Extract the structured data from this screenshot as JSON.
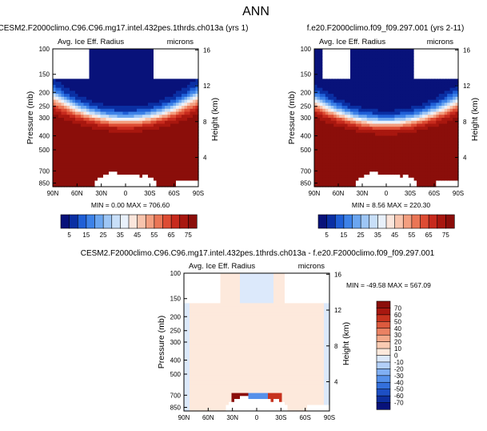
{
  "figure_title": "ANN",
  "colors": {
    "above_scale": "#8b0e0a",
    "missing": "#ffffff",
    "frame": "#000000"
  },
  "chart_data": [
    {
      "type": "heatmap",
      "id": "model",
      "title": "CESM2.F2000climo.C96.C96.mg17.intel.432pes.1thrds.ch013a (yrs 1)",
      "field_label": "Avg. Ice Eff. Radius",
      "units": "microns",
      "ylabel": "Pressure (mb)",
      "ylabel_right": "Height (km)",
      "x_ticks": [
        "90N",
        "60N",
        "30N",
        "0",
        "30S",
        "60S",
        "90S"
      ],
      "y_ticks": [
        100,
        150,
        200,
        250,
        300,
        400,
        500,
        700,
        850
      ],
      "y_ticks_right": [
        16,
        12,
        8,
        4
      ],
      "min_label": "MIN =   0.00",
      "max_label": "MAX = 706.60",
      "levels": [
        5,
        10,
        15,
        20,
        25,
        30,
        35,
        40,
        45,
        50,
        55,
        60,
        65,
        70,
        75
      ],
      "colorbar_labels": [
        "5",
        "15",
        "25",
        "35",
        "45",
        "55",
        "65",
        "75"
      ],
      "colors": [
        "#08127a",
        "#0a2fa3",
        "#1f5fd6",
        "#3d82e8",
        "#6ba6f0",
        "#9ec6f5",
        "#c8dff8",
        "#e9f1fb",
        "#fbe6dc",
        "#f8c4ad",
        "#f39f80",
        "#ea7656",
        "#dd4c33",
        "#c72a1d",
        "#a8170f",
        "#8b0e0a"
      ]
    },
    {
      "type": "heatmap",
      "id": "obs",
      "title": "f.e20.F2000climo.f09_f09.297.001 (yrs 2-11)",
      "field_label": "Avg. Ice Eff. Radius",
      "units": "microns",
      "ylabel": "Pressure (mb)",
      "ylabel_right": "Height (km)",
      "x_ticks": [
        "90N",
        "60N",
        "30N",
        "0",
        "30S",
        "60S",
        "90S"
      ],
      "y_ticks": [
        100,
        150,
        200,
        250,
        300,
        400,
        500,
        700,
        850
      ],
      "y_ticks_right": [
        16,
        12,
        8,
        4
      ],
      "min_label": "MIN =   8.56",
      "max_label": "MAX = 220.30",
      "levels": [
        5,
        10,
        15,
        20,
        25,
        30,
        35,
        40,
        45,
        50,
        55,
        60,
        65,
        70,
        75
      ],
      "colorbar_labels": [
        "5",
        "15",
        "25",
        "35",
        "45",
        "55",
        "65",
        "75"
      ],
      "colors": [
        "#08127a",
        "#0a2fa3",
        "#1f5fd6",
        "#3d82e8",
        "#6ba6f0",
        "#9ec6f5",
        "#c8dff8",
        "#e9f1fb",
        "#fbe6dc",
        "#f8c4ad",
        "#f39f80",
        "#ea7656",
        "#dd4c33",
        "#c72a1d",
        "#a8170f",
        "#8b0e0a"
      ]
    },
    {
      "type": "heatmap",
      "id": "diff",
      "title": "CESM2.F2000climo.C96.C96.mg17.intel.432pes.1thrds.ch013a - f.e20.F2000climo.f09_f09.297.001",
      "field_label": "Avg. Ice Eff. Radius",
      "units": "microns",
      "ylabel": "Pressure (mb)",
      "ylabel_right": "Height (km)",
      "x_ticks": [
        "90N",
        "60N",
        "30N",
        "0",
        "30S",
        "60S",
        "90S"
      ],
      "y_ticks": [
        100,
        150,
        200,
        250,
        300,
        400,
        500,
        700,
        850
      ],
      "y_ticks_right": [
        16,
        12,
        8,
        4
      ],
      "min_label": "MIN = -49.58",
      "max_label": "MAX = 567.09",
      "levels": [
        -70,
        -60,
        -50,
        -40,
        -30,
        -20,
        -10,
        0,
        10,
        20,
        30,
        40,
        50,
        60,
        70
      ],
      "colorbar_labels": [
        "70",
        "60",
        "50",
        "40",
        "30",
        "20",
        "10",
        "0",
        "-10",
        "-20",
        "-30",
        "-40",
        "-50",
        "-60",
        "-70"
      ],
      "colors": [
        "#08127a",
        "#0d2e9e",
        "#1d4fc4",
        "#3470dc",
        "#5590ea",
        "#80aff3",
        "#b2cff8",
        "#dce9fb",
        "#fde9dc",
        "#f9cbb2",
        "#f3a98a",
        "#ea8263",
        "#dc5a3e",
        "#c7331f",
        "#a81810",
        "#8b0e0a"
      ]
    }
  ]
}
